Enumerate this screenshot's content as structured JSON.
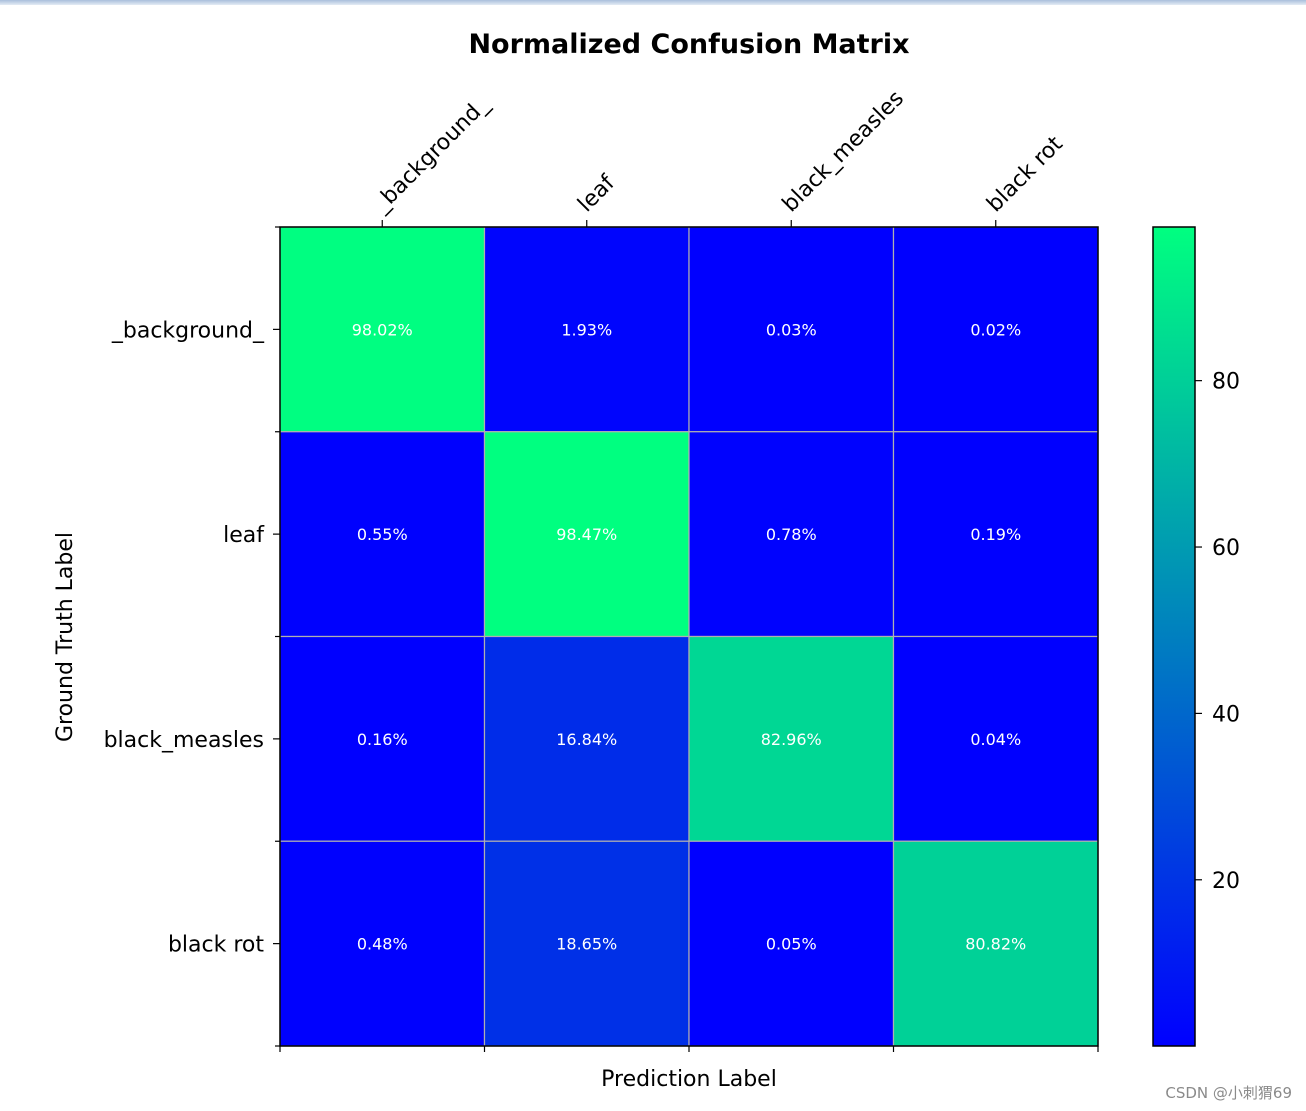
{
  "chart_data": {
    "type": "heatmap",
    "title": "Normalized Confusion Matrix",
    "xlabel": "Prediction Label",
    "ylabel": "Ground Truth Label",
    "x_categories": [
      "_background_",
      "leaf",
      "black_measles",
      "black rot"
    ],
    "y_categories": [
      "_background_",
      "leaf",
      "black_measles",
      "black rot"
    ],
    "values": [
      [
        98.02,
        1.93,
        0.03,
        0.02
      ],
      [
        0.55,
        98.47,
        0.78,
        0.19
      ],
      [
        0.16,
        16.84,
        82.96,
        0.04
      ],
      [
        0.48,
        18.65,
        0.05,
        80.82
      ]
    ],
    "labels": [
      [
        "98.02%",
        "1.93%",
        "0.03%",
        "0.02%"
      ],
      [
        "0.55%",
        "98.47%",
        "0.78%",
        "0.19%"
      ],
      [
        "0.16%",
        "16.84%",
        "82.96%",
        "0.04%"
      ],
      [
        "0.48%",
        "18.65%",
        "0.05%",
        "80.82%"
      ]
    ],
    "colormap": "winter",
    "color_range": [
      0.02,
      98.47
    ],
    "colorbar_ticks": [
      20,
      40,
      60,
      80
    ],
    "colormap_low": "#0000ff",
    "colormap_high": "#00ff80",
    "annotation_color": "#ffffff",
    "grid": true
  },
  "watermark": "CSDN @小刺猬69"
}
